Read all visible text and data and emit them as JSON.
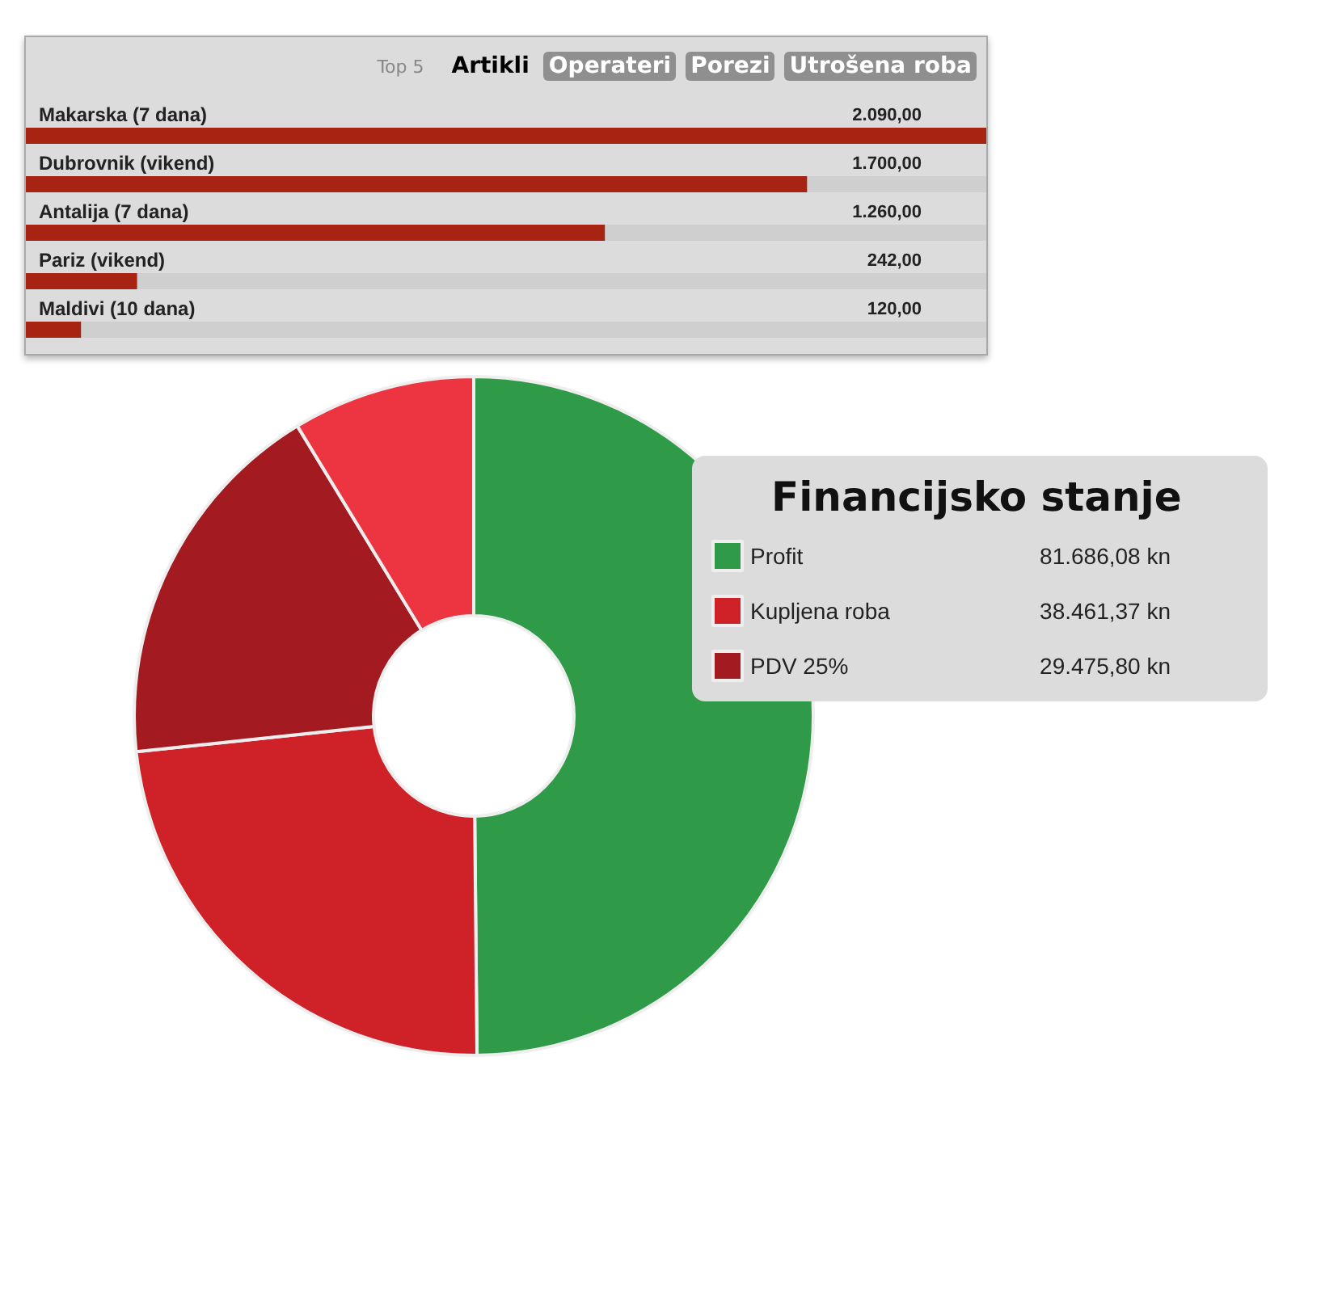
{
  "chart_data": [
    {
      "type": "bar",
      "orientation": "horizontal",
      "title": "Top 5",
      "annotations": [
        "Artikli",
        "Operateri",
        "Porezi",
        "Utrošena roba"
      ],
      "categories": [
        "Makarska (7 dana)",
        "Dubrovnik (vikend)",
        "Antalija (7 dana)",
        "Pariz (vikend)",
        "Maldivi (10 dana)"
      ],
      "values": [
        2090,
        1700,
        1260,
        242,
        120
      ],
      "value_labels": [
        "2.090,00",
        "1.700,00",
        "1.260,00",
        "242,00",
        "120,00"
      ],
      "color": "#a82412"
    },
    {
      "type": "donut",
      "legend_title": "Financijsko stanje",
      "legend": "right",
      "categories": [
        "Profit",
        "Kupljena roba",
        "PDV 25%",
        null
      ],
      "values": [
        81686.08,
        38461.37,
        29475.8,
        14250
      ],
      "value_labels": [
        "81.686,08 kn",
        "38.461,37 kn",
        "29.475,80 kn",
        null
      ],
      "colors": [
        "#2f9a47",
        "#cf2128",
        "#a31a20",
        "#ec3540"
      ]
    }
  ]
}
